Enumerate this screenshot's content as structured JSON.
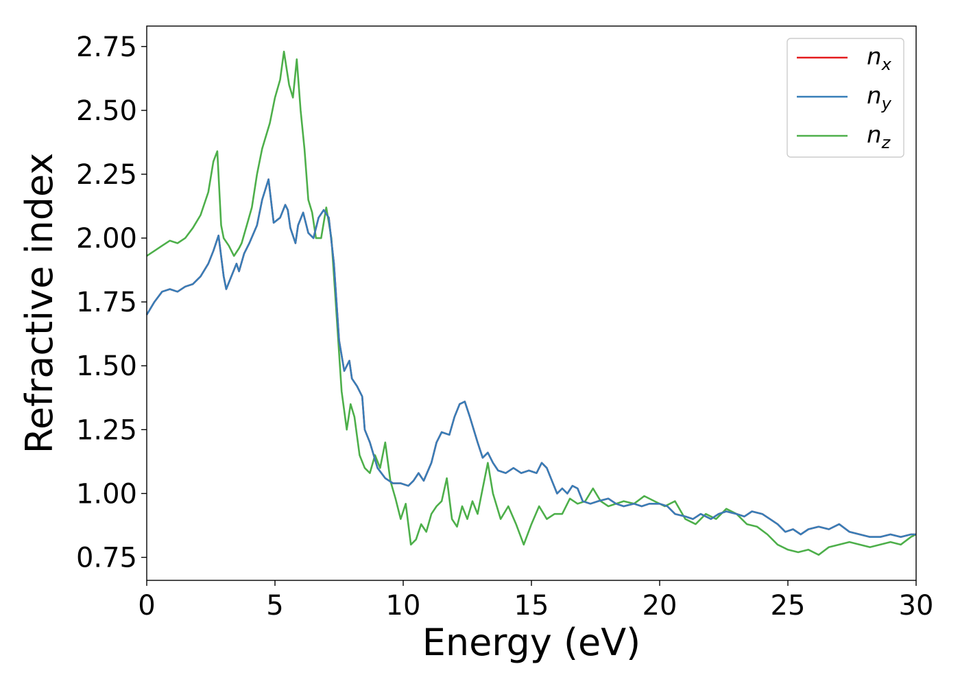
{
  "chart_data": {
    "type": "line",
    "xlabel": "Energy (eV)",
    "ylabel": "Refractive index",
    "xlim": [
      0,
      30
    ],
    "ylim": [
      0.66,
      2.83
    ],
    "xticks": [
      0,
      5,
      10,
      15,
      20,
      25,
      30
    ],
    "yticks": [
      0.75,
      1.0,
      1.25,
      1.5,
      1.75,
      2.0,
      2.25,
      2.5,
      2.75
    ],
    "xtick_labels": [
      "0",
      "5",
      "10",
      "15",
      "20",
      "25",
      "30"
    ],
    "ytick_labels": [
      "0.75",
      "1.00",
      "1.25",
      "1.50",
      "1.75",
      "2.00",
      "2.25",
      "2.50",
      "2.75"
    ],
    "grid": false,
    "legend_position": "top-right",
    "series": [
      {
        "name": "n",
        "sub": "x",
        "color": "#e41a1c",
        "x": [
          0,
          0.3,
          0.6,
          0.9,
          1.2,
          1.5,
          1.8,
          2.1,
          2.4,
          2.6,
          2.8,
          3.0,
          3.1,
          3.3,
          3.5,
          3.6,
          3.8,
          4.0,
          4.3,
          4.5,
          4.75,
          4.95,
          5.2,
          5.4,
          5.5,
          5.6,
          5.8,
          5.9,
          6.1,
          6.3,
          6.5,
          6.7,
          6.9,
          7.1,
          7.3,
          7.5,
          7.7,
          7.9,
          8.0,
          8.2,
          8.4,
          8.5,
          8.7,
          9.0,
          9.3,
          9.6,
          9.9,
          10.2,
          10.4,
          10.6,
          10.8,
          11.1,
          11.3,
          11.5,
          11.8,
          12.0,
          12.2,
          12.4,
          12.6,
          12.9,
          13.1,
          13.3,
          13.5,
          13.7,
          14.0,
          14.3,
          14.6,
          14.9,
          15.2,
          15.4,
          15.6,
          15.8,
          16.0,
          16.2,
          16.4,
          16.6,
          16.8,
          17.0,
          17.3,
          17.6,
          18.0,
          18.3,
          18.6,
          19.0,
          19.3,
          19.6,
          20.0,
          20.3,
          20.6,
          21.0,
          21.3,
          21.6,
          22.0,
          22.3,
          22.6,
          23.0,
          23.3,
          23.6,
          24.0,
          24.3,
          24.6,
          24.9,
          25.2,
          25.5,
          25.8,
          26.2,
          26.6,
          27.0,
          27.4,
          27.8,
          28.2,
          28.6,
          29.0,
          29.4,
          29.8,
          30.0
        ],
        "y": [
          1.7,
          1.75,
          1.79,
          1.8,
          1.79,
          1.81,
          1.82,
          1.85,
          1.9,
          1.95,
          2.01,
          1.85,
          1.8,
          1.85,
          1.9,
          1.87,
          1.94,
          1.98,
          2.05,
          2.15,
          2.23,
          2.06,
          2.08,
          2.13,
          2.11,
          2.04,
          1.98,
          2.05,
          2.1,
          2.02,
          2.0,
          2.08,
          2.11,
          2.08,
          1.9,
          1.6,
          1.48,
          1.52,
          1.45,
          1.42,
          1.38,
          1.25,
          1.2,
          1.1,
          1.06,
          1.04,
          1.04,
          1.03,
          1.05,
          1.08,
          1.05,
          1.12,
          1.2,
          1.24,
          1.23,
          1.3,
          1.35,
          1.36,
          1.3,
          1.2,
          1.14,
          1.16,
          1.12,
          1.09,
          1.08,
          1.1,
          1.08,
          1.09,
          1.08,
          1.12,
          1.1,
          1.05,
          1.0,
          1.02,
          1.0,
          1.03,
          1.02,
          0.97,
          0.96,
          0.97,
          0.98,
          0.96,
          0.95,
          0.96,
          0.95,
          0.96,
          0.96,
          0.95,
          0.92,
          0.91,
          0.9,
          0.92,
          0.9,
          0.92,
          0.93,
          0.92,
          0.91,
          0.93,
          0.92,
          0.9,
          0.88,
          0.85,
          0.86,
          0.84,
          0.86,
          0.87,
          0.86,
          0.88,
          0.85,
          0.84,
          0.83,
          0.83,
          0.84,
          0.83,
          0.84,
          0.84
        ]
      },
      {
        "name": "n",
        "sub": "y",
        "color": "#377eb8",
        "x": [
          0,
          0.3,
          0.6,
          0.9,
          1.2,
          1.5,
          1.8,
          2.1,
          2.4,
          2.6,
          2.8,
          3.0,
          3.1,
          3.3,
          3.5,
          3.6,
          3.8,
          4.0,
          4.3,
          4.5,
          4.75,
          4.95,
          5.2,
          5.4,
          5.5,
          5.6,
          5.8,
          5.9,
          6.1,
          6.3,
          6.5,
          6.7,
          6.9,
          7.1,
          7.3,
          7.5,
          7.7,
          7.9,
          8.0,
          8.2,
          8.4,
          8.5,
          8.7,
          9.0,
          9.3,
          9.6,
          9.9,
          10.2,
          10.4,
          10.6,
          10.8,
          11.1,
          11.3,
          11.5,
          11.8,
          12.0,
          12.2,
          12.4,
          12.6,
          12.9,
          13.1,
          13.3,
          13.5,
          13.7,
          14.0,
          14.3,
          14.6,
          14.9,
          15.2,
          15.4,
          15.6,
          15.8,
          16.0,
          16.2,
          16.4,
          16.6,
          16.8,
          17.0,
          17.3,
          17.6,
          18.0,
          18.3,
          18.6,
          19.0,
          19.3,
          19.6,
          20.0,
          20.3,
          20.6,
          21.0,
          21.3,
          21.6,
          22.0,
          22.3,
          22.6,
          23.0,
          23.3,
          23.6,
          24.0,
          24.3,
          24.6,
          24.9,
          25.2,
          25.5,
          25.8,
          26.2,
          26.6,
          27.0,
          27.4,
          27.8,
          28.2,
          28.6,
          29.0,
          29.4,
          29.8,
          30.0
        ],
        "y": [
          1.7,
          1.75,
          1.79,
          1.8,
          1.79,
          1.81,
          1.82,
          1.85,
          1.9,
          1.95,
          2.01,
          1.85,
          1.8,
          1.85,
          1.9,
          1.87,
          1.94,
          1.98,
          2.05,
          2.15,
          2.23,
          2.06,
          2.08,
          2.13,
          2.11,
          2.04,
          1.98,
          2.05,
          2.1,
          2.02,
          2.0,
          2.08,
          2.11,
          2.08,
          1.9,
          1.6,
          1.48,
          1.52,
          1.45,
          1.42,
          1.38,
          1.25,
          1.2,
          1.1,
          1.06,
          1.04,
          1.04,
          1.03,
          1.05,
          1.08,
          1.05,
          1.12,
          1.2,
          1.24,
          1.23,
          1.3,
          1.35,
          1.36,
          1.3,
          1.2,
          1.14,
          1.16,
          1.12,
          1.09,
          1.08,
          1.1,
          1.08,
          1.09,
          1.08,
          1.12,
          1.1,
          1.05,
          1.0,
          1.02,
          1.0,
          1.03,
          1.02,
          0.97,
          0.96,
          0.97,
          0.98,
          0.96,
          0.95,
          0.96,
          0.95,
          0.96,
          0.96,
          0.95,
          0.92,
          0.91,
          0.9,
          0.92,
          0.9,
          0.92,
          0.93,
          0.92,
          0.91,
          0.93,
          0.92,
          0.9,
          0.88,
          0.85,
          0.86,
          0.84,
          0.86,
          0.87,
          0.86,
          0.88,
          0.85,
          0.84,
          0.83,
          0.83,
          0.84,
          0.83,
          0.84,
          0.84
        ]
      },
      {
        "name": "n",
        "sub": "z",
        "color": "#4daf4a",
        "x": [
          0,
          0.3,
          0.6,
          0.9,
          1.2,
          1.5,
          1.8,
          2.1,
          2.4,
          2.6,
          2.75,
          2.9,
          3.0,
          3.2,
          3.4,
          3.6,
          3.7,
          3.9,
          4.1,
          4.3,
          4.5,
          4.8,
          5.0,
          5.2,
          5.35,
          5.55,
          5.7,
          5.85,
          6.0,
          6.15,
          6.3,
          6.45,
          6.6,
          6.8,
          7.0,
          7.2,
          7.4,
          7.6,
          7.8,
          7.95,
          8.1,
          8.3,
          8.5,
          8.7,
          8.9,
          9.1,
          9.3,
          9.5,
          9.7,
          9.9,
          10.1,
          10.3,
          10.5,
          10.7,
          10.9,
          11.1,
          11.3,
          11.5,
          11.7,
          11.9,
          12.1,
          12.3,
          12.5,
          12.7,
          12.9,
          13.1,
          13.3,
          13.5,
          13.8,
          14.1,
          14.4,
          14.7,
          15.0,
          15.3,
          15.6,
          15.9,
          16.2,
          16.5,
          16.8,
          17.1,
          17.4,
          17.7,
          18.0,
          18.3,
          18.6,
          19.0,
          19.4,
          19.8,
          20.2,
          20.6,
          21.0,
          21.4,
          21.8,
          22.2,
          22.6,
          23.0,
          23.4,
          23.8,
          24.2,
          24.6,
          25.0,
          25.4,
          25.8,
          26.2,
          26.6,
          27.0,
          27.4,
          27.8,
          28.2,
          28.6,
          29.0,
          29.4,
          29.8,
          30.0
        ],
        "y": [
          1.93,
          1.95,
          1.97,
          1.99,
          1.98,
          2.0,
          2.04,
          2.09,
          2.18,
          2.3,
          2.34,
          2.05,
          2.0,
          1.97,
          1.93,
          1.96,
          1.98,
          2.05,
          2.12,
          2.25,
          2.35,
          2.45,
          2.55,
          2.62,
          2.73,
          2.6,
          2.55,
          2.7,
          2.5,
          2.35,
          2.15,
          2.1,
          2.0,
          2.0,
          2.12,
          2.0,
          1.7,
          1.4,
          1.25,
          1.35,
          1.3,
          1.15,
          1.1,
          1.08,
          1.15,
          1.1,
          1.2,
          1.05,
          0.98,
          0.9,
          0.96,
          0.8,
          0.82,
          0.88,
          0.85,
          0.92,
          0.95,
          0.97,
          1.06,
          0.9,
          0.87,
          0.95,
          0.9,
          0.97,
          0.92,
          1.02,
          1.12,
          1.0,
          0.9,
          0.95,
          0.88,
          0.8,
          0.88,
          0.95,
          0.9,
          0.92,
          0.92,
          0.98,
          0.96,
          0.97,
          1.02,
          0.97,
          0.95,
          0.96,
          0.97,
          0.96,
          0.99,
          0.97,
          0.95,
          0.97,
          0.9,
          0.88,
          0.92,
          0.9,
          0.94,
          0.92,
          0.88,
          0.87,
          0.84,
          0.8,
          0.78,
          0.77,
          0.78,
          0.76,
          0.79,
          0.8,
          0.81,
          0.8,
          0.79,
          0.8,
          0.81,
          0.8,
          0.83,
          0.84
        ]
      }
    ]
  }
}
